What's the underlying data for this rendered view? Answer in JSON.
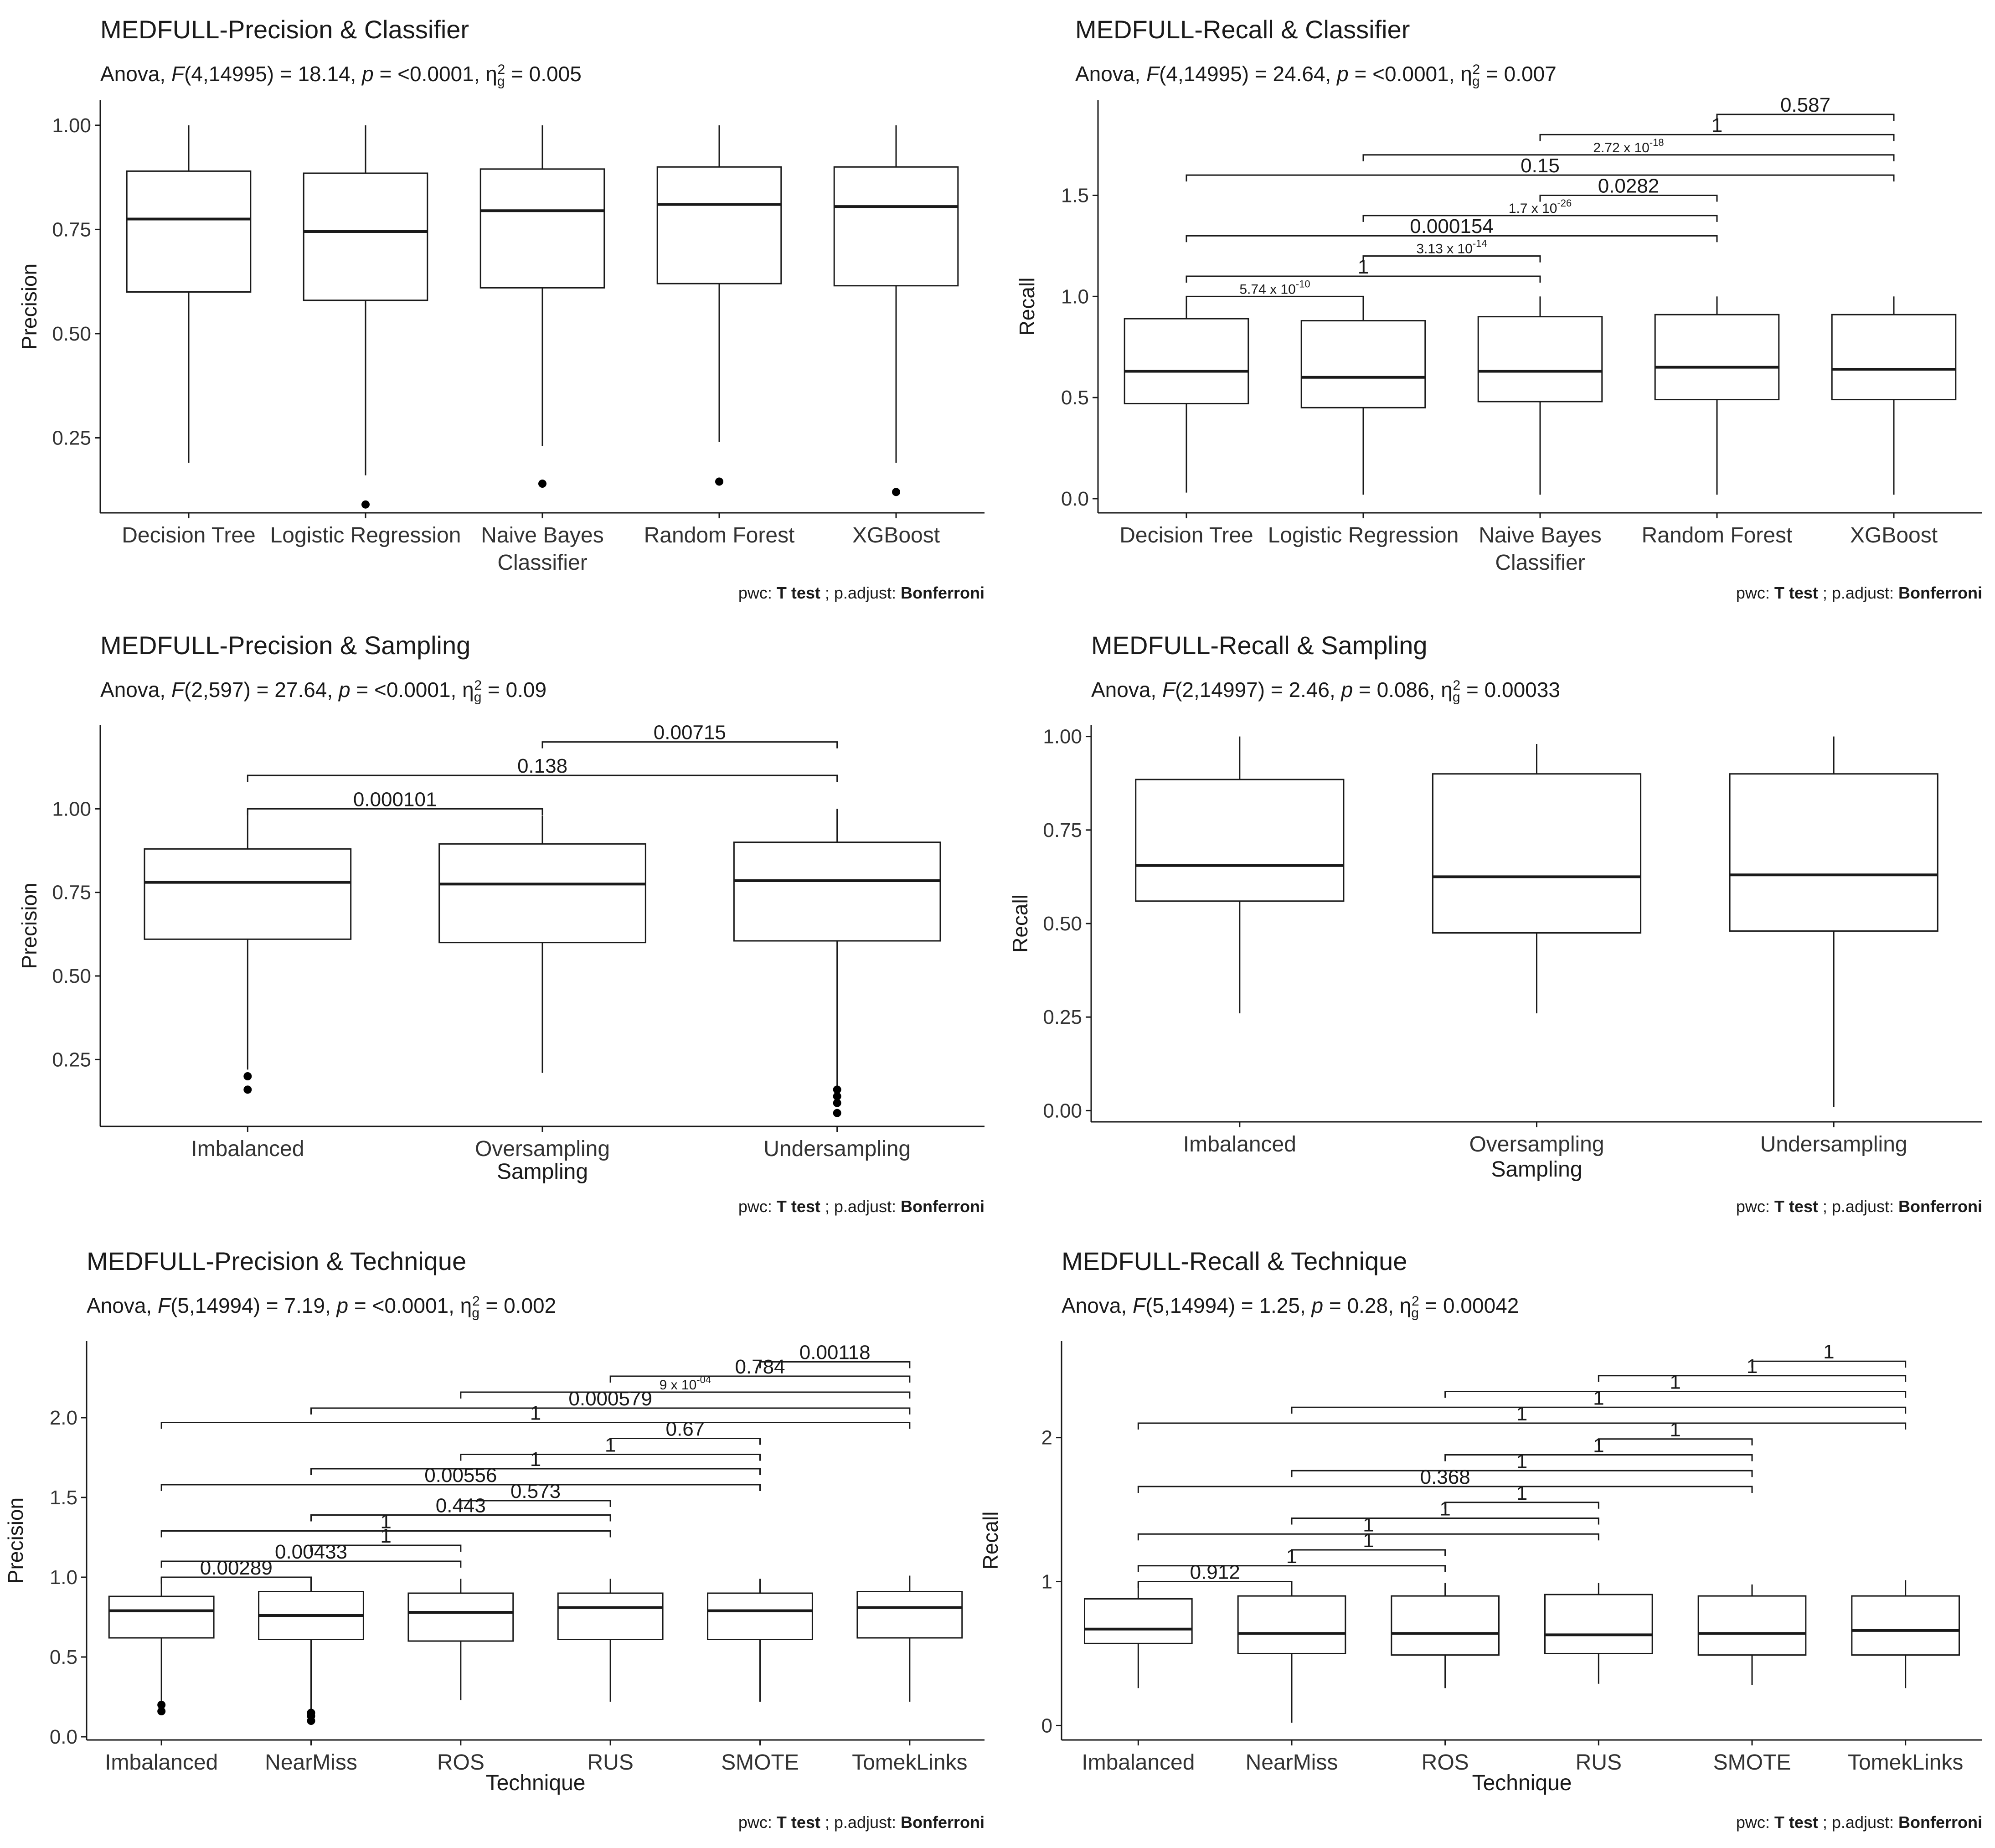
{
  "footnote": {
    "pwc_label": "pwc:",
    "pwc_method": "T test",
    "sep": "; p.adjust:",
    "adjust_method": "Bonferroni"
  },
  "chart_data": [
    {
      "type": "box",
      "title": "MEDFULL-Precision & Classifier",
      "subtitle": "Anova, F(4,14995) = 18.14, p = <0.0001, η²g = 0.005",
      "subtitle_parts": {
        "stat": "F(4,14995) = 18.14",
        "p": "p = <0.0001",
        "eta": "0.005"
      },
      "xlabel": "",
      "ylabel": "Precision",
      "ylim": [
        0.07,
        1.06
      ],
      "yticks": [
        "0.25",
        "0.50",
        "0.75",
        "1.00"
      ],
      "categories": [
        "Decision Tree",
        "Logistic Regression",
        "Naive Bayes\nClassifier",
        "Random Forest",
        "XGBoost"
      ],
      "boxes": [
        {
          "min": 0.19,
          "q1": 0.6,
          "median": 0.775,
          "q3": 0.89,
          "max": 1.0,
          "outliers": []
        },
        {
          "min": 0.16,
          "q1": 0.58,
          "median": 0.745,
          "q3": 0.885,
          "max": 1.0,
          "outliers": [
            0.09
          ]
        },
        {
          "min": 0.23,
          "q1": 0.61,
          "median": 0.795,
          "q3": 0.895,
          "max": 1.0,
          "outliers": [
            0.14
          ]
        },
        {
          "min": 0.24,
          "q1": 0.62,
          "median": 0.81,
          "q3": 0.9,
          "max": 1.0,
          "outliers": [
            0.145
          ]
        },
        {
          "min": 0.19,
          "q1": 0.615,
          "median": 0.805,
          "q3": 0.9,
          "max": 1.0,
          "outliers": [
            0.12
          ]
        }
      ],
      "brackets": []
    },
    {
      "type": "box",
      "title": "MEDFULL-Recall & Classifier",
      "subtitle": "Anova, F(4,14995) = 24.64, p = <0.0001, η²g = 0.007",
      "subtitle_parts": {
        "stat": "F(4,14995) = 24.64",
        "p": "p = <0.0001",
        "eta": "0.007"
      },
      "xlabel": "",
      "ylabel": "Recall",
      "ylim": [
        -0.07,
        1.97
      ],
      "yticks": [
        "0.0",
        "0.5",
        "1.0",
        "1.5"
      ],
      "categories": [
        "Decision Tree",
        "Logistic Regression",
        "Naive Bayes\nClassifier",
        "Random Forest",
        "XGBoost"
      ],
      "boxes": [
        {
          "min": 0.03,
          "q1": 0.47,
          "median": 0.63,
          "q3": 0.89,
          "max": 1.0,
          "outliers": []
        },
        {
          "min": 0.02,
          "q1": 0.45,
          "median": 0.6,
          "q3": 0.88,
          "max": 1.0,
          "outliers": []
        },
        {
          "min": 0.02,
          "q1": 0.48,
          "median": 0.63,
          "q3": 0.9,
          "max": 1.0,
          "outliers": []
        },
        {
          "min": 0.02,
          "q1": 0.49,
          "median": 0.65,
          "q3": 0.91,
          "max": 1.0,
          "outliers": []
        },
        {
          "min": 0.02,
          "q1": 0.49,
          "median": 0.64,
          "q3": 0.91,
          "max": 1.0,
          "outliers": []
        }
      ],
      "brackets": [
        {
          "from": 0,
          "to": 1,
          "y": 1.0,
          "label": "5.74 x 10^-10"
        },
        {
          "from": 0,
          "to": 2,
          "y": 1.1,
          "label": "1"
        },
        {
          "from": 1,
          "to": 2,
          "y": 1.2,
          "label": "3.13 x 10^-14"
        },
        {
          "from": 0,
          "to": 3,
          "y": 1.3,
          "label": "0.000154"
        },
        {
          "from": 1,
          "to": 3,
          "y": 1.4,
          "label": "1.7 x 10^-26"
        },
        {
          "from": 2,
          "to": 3,
          "y": 1.5,
          "label": "0.0282"
        },
        {
          "from": 0,
          "to": 4,
          "y": 1.6,
          "label": "0.15"
        },
        {
          "from": 1,
          "to": 4,
          "y": 1.7,
          "label": "2.72 x 10^-18"
        },
        {
          "from": 2,
          "to": 4,
          "y": 1.8,
          "label": "1"
        },
        {
          "from": 3,
          "to": 4,
          "y": 1.9,
          "label": "0.587"
        }
      ]
    },
    {
      "type": "box",
      "title": "MEDFULL-Precision & Sampling",
      "subtitle": "Anova, F(2,597) = 27.64, p = <0.0001, η²g = 0.09",
      "subtitle_parts": {
        "stat": "F(2,597) = 27.64",
        "p": "p = <0.0001",
        "eta": "0.09"
      },
      "xlabel": "Sampling",
      "ylabel": "Precision",
      "ylim": [
        0.05,
        1.25
      ],
      "yticks": [
        "0.25",
        "0.50",
        "0.75",
        "1.00"
      ],
      "categories": [
        "Imbalanced",
        "Oversampling",
        "Undersampling"
      ],
      "boxes": [
        {
          "min": 0.22,
          "q1": 0.61,
          "median": 0.78,
          "q3": 0.88,
          "max": 1.0,
          "outliers": [
            0.2,
            0.16
          ]
        },
        {
          "min": 0.21,
          "q1": 0.6,
          "median": 0.775,
          "q3": 0.895,
          "max": 0.98,
          "outliers": []
        },
        {
          "min": 0.17,
          "q1": 0.605,
          "median": 0.785,
          "q3": 0.9,
          "max": 1.0,
          "outliers": [
            0.16,
            0.14,
            0.12,
            0.09
          ]
        }
      ],
      "brackets": [
        {
          "from": 0,
          "to": 1,
          "y": 1.0,
          "label": "0.000101"
        },
        {
          "from": 0,
          "to": 2,
          "y": 1.1,
          "label": "0.138"
        },
        {
          "from": 1,
          "to": 2,
          "y": 1.2,
          "label": "0.00715"
        }
      ]
    },
    {
      "type": "box",
      "title": "MEDFULL-Recall & Sampling",
      "subtitle": "Anova, F(2,14997) = 2.46, p = 0.086, η²g = 0.00033",
      "subtitle_parts": {
        "stat": "F(2,14997) = 2.46",
        "p": "p = 0.086",
        "eta": "0.00033"
      },
      "xlabel": "Sampling",
      "ylabel": "Recall",
      "ylim": [
        -0.03,
        1.03
      ],
      "yticks": [
        "0.00",
        "0.25",
        "0.50",
        "0.75",
        "1.00"
      ],
      "categories": [
        "Imbalanced",
        "Oversampling",
        "Undersampling"
      ],
      "boxes": [
        {
          "min": 0.26,
          "q1": 0.56,
          "median": 0.655,
          "q3": 0.885,
          "max": 1.0,
          "outliers": []
        },
        {
          "min": 0.26,
          "q1": 0.475,
          "median": 0.625,
          "q3": 0.9,
          "max": 0.98,
          "outliers": []
        },
        {
          "min": 0.01,
          "q1": 0.48,
          "median": 0.63,
          "q3": 0.9,
          "max": 1.0,
          "outliers": []
        }
      ],
      "brackets": []
    },
    {
      "type": "box",
      "title": "MEDFULL-Precision & Technique",
      "subtitle": "Anova, F(5,14994) = 7.19, p = <0.0001, η²g = 0.002",
      "subtitle_parts": {
        "stat": "F(5,14994) = 7.19",
        "p": "p = <0.0001",
        "eta": "0.002"
      },
      "xlabel": "Technique",
      "ylabel": "Precision",
      "ylim": [
        -0.02,
        2.48
      ],
      "yticks": [
        "0.0",
        "0.5",
        "1.0",
        "1.5",
        "2.0"
      ],
      "categories": [
        "Imbalanced",
        "NearMiss",
        "ROS",
        "RUS",
        "SMOTE",
        "TomekLinks"
      ],
      "boxes": [
        {
          "min": 0.22,
          "q1": 0.62,
          "median": 0.79,
          "q3": 0.88,
          "max": 1.0,
          "outliers": [
            0.2,
            0.16
          ]
        },
        {
          "min": 0.16,
          "q1": 0.61,
          "median": 0.76,
          "q3": 0.91,
          "max": 1.0,
          "outliers": [
            0.15,
            0.13,
            0.1
          ]
        },
        {
          "min": 0.23,
          "q1": 0.6,
          "median": 0.78,
          "q3": 0.9,
          "max": 0.99,
          "outliers": []
        },
        {
          "min": 0.22,
          "q1": 0.61,
          "median": 0.81,
          "q3": 0.9,
          "max": 0.99,
          "outliers": []
        },
        {
          "min": 0.22,
          "q1": 0.61,
          "median": 0.79,
          "q3": 0.9,
          "max": 0.99,
          "outliers": []
        },
        {
          "min": 0.22,
          "q1": 0.62,
          "median": 0.81,
          "q3": 0.91,
          "max": 1.01,
          "outliers": []
        }
      ],
      "brackets": [
        {
          "from": 0,
          "to": 1,
          "y": 1.0,
          "label": "0.00289"
        },
        {
          "from": 0,
          "to": 2,
          "y": 1.1,
          "label": "0.00433"
        },
        {
          "from": 1,
          "to": 2,
          "y": 1.2,
          "label": "1"
        },
        {
          "from": 0,
          "to": 3,
          "y": 1.29,
          "label": "1"
        },
        {
          "from": 1,
          "to": 3,
          "y": 1.39,
          "label": "0.443"
        },
        {
          "from": 2,
          "to": 3,
          "y": 1.48,
          "label": "0.573"
        },
        {
          "from": 0,
          "to": 4,
          "y": 1.58,
          "label": "0.00556"
        },
        {
          "from": 1,
          "to": 4,
          "y": 1.68,
          "label": "1"
        },
        {
          "from": 2,
          "to": 4,
          "y": 1.77,
          "label": "1"
        },
        {
          "from": 3,
          "to": 4,
          "y": 1.87,
          "label": "0.67"
        },
        {
          "from": 0,
          "to": 5,
          "y": 1.97,
          "label": "1"
        },
        {
          "from": 1,
          "to": 5,
          "y": 2.06,
          "label": "0.000579"
        },
        {
          "from": 2,
          "to": 5,
          "y": 2.16,
          "label": "9 x 10^-04"
        },
        {
          "from": 3,
          "to": 5,
          "y": 2.26,
          "label": "0.784"
        },
        {
          "from": 4,
          "to": 5,
          "y": 2.35,
          "label": "0.00118"
        }
      ]
    },
    {
      "type": "box",
      "title": "MEDFULL-Recall & Technique",
      "subtitle": "Anova, F(5,14994) = 1.25, p = 0.28, η²g = 0.00042",
      "subtitle_parts": {
        "stat": "F(5,14994) = 1.25",
        "p": "p = 0.28",
        "eta": "0.00042"
      },
      "xlabel": "Technique",
      "ylabel": "Recall",
      "ylim": [
        -0.1,
        2.67
      ],
      "yticks": [
        "0",
        "1",
        "2"
      ],
      "categories": [
        "Imbalanced",
        "NearMiss",
        "ROS",
        "RUS",
        "SMOTE",
        "TomekLinks"
      ],
      "boxes": [
        {
          "min": 0.26,
          "q1": 0.57,
          "median": 0.67,
          "q3": 0.88,
          "max": 1.0,
          "outliers": []
        },
        {
          "min": 0.02,
          "q1": 0.5,
          "median": 0.64,
          "q3": 0.9,
          "max": 1.0,
          "outliers": []
        },
        {
          "min": 0.26,
          "q1": 0.49,
          "median": 0.64,
          "q3": 0.9,
          "max": 0.99,
          "outliers": []
        },
        {
          "min": 0.29,
          "q1": 0.5,
          "median": 0.63,
          "q3": 0.91,
          "max": 0.99,
          "outliers": []
        },
        {
          "min": 0.28,
          "q1": 0.49,
          "median": 0.64,
          "q3": 0.9,
          "max": 0.98,
          "outliers": []
        },
        {
          "min": 0.26,
          "q1": 0.49,
          "median": 0.66,
          "q3": 0.9,
          "max": 1.01,
          "outliers": []
        }
      ],
      "brackets": [
        {
          "from": 0,
          "to": 1,
          "y": 1.0,
          "label": "0.912"
        },
        {
          "from": 0,
          "to": 2,
          "y": 1.11,
          "label": "1"
        },
        {
          "from": 1,
          "to": 2,
          "y": 1.22,
          "label": "1"
        },
        {
          "from": 0,
          "to": 3,
          "y": 1.33,
          "label": "1"
        },
        {
          "from": 1,
          "to": 3,
          "y": 1.44,
          "label": "1"
        },
        {
          "from": 2,
          "to": 3,
          "y": 1.55,
          "label": "1"
        },
        {
          "from": 0,
          "to": 4,
          "y": 1.66,
          "label": "0.368"
        },
        {
          "from": 1,
          "to": 4,
          "y": 1.77,
          "label": "1"
        },
        {
          "from": 2,
          "to": 4,
          "y": 1.88,
          "label": "1"
        },
        {
          "from": 3,
          "to": 4,
          "y": 1.99,
          "label": "1"
        },
        {
          "from": 0,
          "to": 5,
          "y": 2.1,
          "label": "1"
        },
        {
          "from": 1,
          "to": 5,
          "y": 2.21,
          "label": "1"
        },
        {
          "from": 2,
          "to": 5,
          "y": 2.32,
          "label": "1"
        },
        {
          "from": 3,
          "to": 5,
          "y": 2.43,
          "label": "1"
        },
        {
          "from": 4,
          "to": 5,
          "y": 2.53,
          "label": "1"
        }
      ]
    }
  ]
}
